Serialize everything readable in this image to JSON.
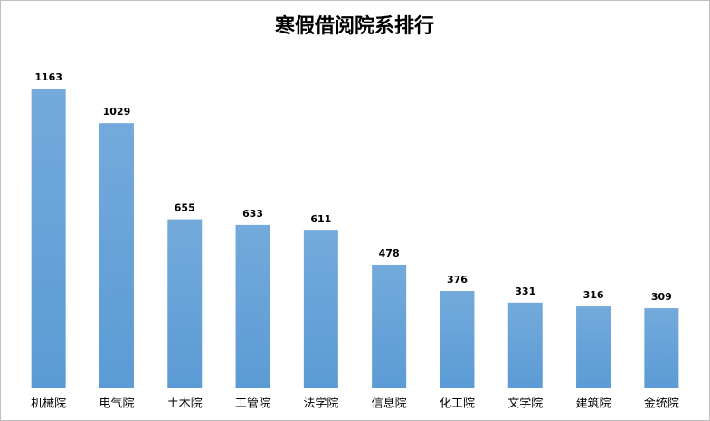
{
  "chart_data": {
    "type": "bar",
    "title": "寒假借阅院系排行",
    "categories": [
      "机械院",
      "电气院",
      "土木院",
      "工管院",
      "法学院",
      "信息院",
      "化工院",
      "文学院",
      "建筑院",
      "金统院"
    ],
    "values": [
      1163,
      1029,
      655,
      633,
      611,
      478,
      376,
      331,
      316,
      309
    ],
    "color": "#5b9bd5",
    "ylim": [
      0,
      1200
    ],
    "yticks": [
      0,
      400,
      800,
      1200
    ],
    "grid": true
  }
}
